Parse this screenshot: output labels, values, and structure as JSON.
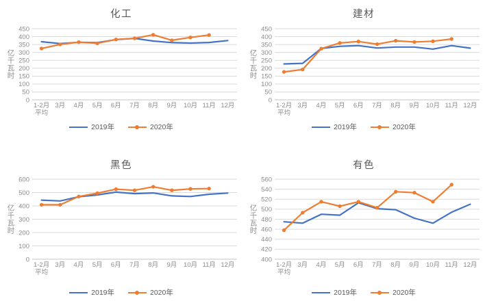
{
  "colors": {
    "series_2019": "#4472C4",
    "series_2020": "#ED7D31",
    "gridline": "#DADADA",
    "axis_line": "#C6C6C6",
    "tick_label": "#8C8C8C",
    "chart_title": "#595959",
    "legend_text": "#595959",
    "background": "#FFFFFF"
  },
  "chart_data": [
    {
      "type": "line",
      "title": "化工",
      "ylabel": "亿千瓦时",
      "ylim": [
        0,
        450
      ],
      "ytick_step": 50,
      "grid": true,
      "legend_position": "bottom",
      "categories": [
        "1-2月|平均",
        "3月",
        "4月",
        "5月",
        "6月",
        "7月",
        "8月",
        "9月",
        "10月",
        "11月",
        "12月"
      ],
      "series": [
        {
          "name": "2019年",
          "color": "#4472C4",
          "marker": "none",
          "values": [
            368,
            356,
            364,
            362,
            381,
            389,
            372,
            362,
            359,
            363,
            375
          ]
        },
        {
          "name": "2020年",
          "color": "#ED7D31",
          "marker": "circle",
          "values": [
            325,
            351,
            365,
            358,
            382,
            389,
            412,
            377,
            395,
            410,
            null
          ]
        }
      ]
    },
    {
      "type": "line",
      "title": "建材",
      "ylabel": "亿千瓦时",
      "ylim": [
        0,
        450
      ],
      "ytick_step": 50,
      "grid": true,
      "legend_position": "bottom",
      "categories": [
        "1-2月|平均",
        "3月",
        "4月",
        "5月",
        "6月",
        "7月",
        "8月",
        "9月",
        "10月",
        "11月",
        "12月"
      ],
      "series": [
        {
          "name": "2019年",
          "color": "#4472C4",
          "marker": "none",
          "values": [
            227,
            231,
            325,
            339,
            343,
            328,
            334,
            334,
            321,
            343,
            327
          ]
        },
        {
          "name": "2020年",
          "color": "#ED7D31",
          "marker": "circle",
          "values": [
            177,
            192,
            324,
            360,
            369,
            352,
            374,
            366,
            371,
            385,
            null
          ]
        }
      ]
    },
    {
      "type": "line",
      "title": "黑色",
      "ylabel": "亿千瓦时",
      "ylim": [
        0,
        600
      ],
      "ytick_step": 100,
      "grid": true,
      "legend_position": "bottom",
      "categories": [
        "1-2月|平均",
        "3月",
        "4月",
        "5月",
        "6月",
        "7月",
        "8月",
        "9月",
        "10月",
        "11月",
        "12月"
      ],
      "series": [
        {
          "name": "2019年",
          "color": "#4472C4",
          "marker": "none",
          "values": [
            443,
            437,
            468,
            482,
            503,
            492,
            497,
            475,
            470,
            487,
            496
          ]
        },
        {
          "name": "2020年",
          "color": "#ED7D31",
          "marker": "circle",
          "values": [
            408,
            408,
            470,
            495,
            525,
            517,
            543,
            517,
            527,
            530,
            null
          ]
        }
      ]
    },
    {
      "type": "line",
      "title": "有色",
      "ylabel": "亿千瓦时",
      "ylim": [
        400,
        560
      ],
      "ytick_step": 20,
      "grid": true,
      "legend_position": "bottom",
      "categories": [
        "1-2月|平均",
        "3月",
        "4月",
        "5月",
        "6月",
        "7月",
        "8月",
        "9月",
        "10月",
        "11月",
        "12月"
      ],
      "series": [
        {
          "name": "2019年",
          "color": "#4472C4",
          "marker": "none",
          "values": [
            475,
            472,
            490,
            488,
            513,
            501,
            499,
            482,
            472,
            494,
            510
          ]
        },
        {
          "name": "2020年",
          "color": "#ED7D31",
          "marker": "circle",
          "values": [
            458,
            493,
            515,
            506,
            515,
            503,
            535,
            533,
            515,
            549,
            null
          ]
        }
      ]
    }
  ]
}
